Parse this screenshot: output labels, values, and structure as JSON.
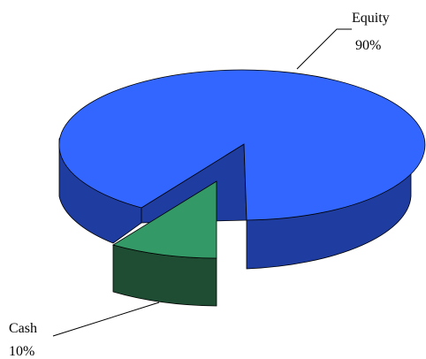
{
  "chart_data": {
    "type": "pie",
    "style": "3d-exploded",
    "slices": [
      {
        "label": "Equity",
        "value": 90,
        "value_label": "90%",
        "color_top": "#3366ff",
        "color_side": "#1f3da0"
      },
      {
        "label": "Cash",
        "value": 10,
        "value_label": "10%",
        "color_top": "#339966",
        "color_side": "#1e4d33"
      }
    ],
    "legend": "none"
  }
}
